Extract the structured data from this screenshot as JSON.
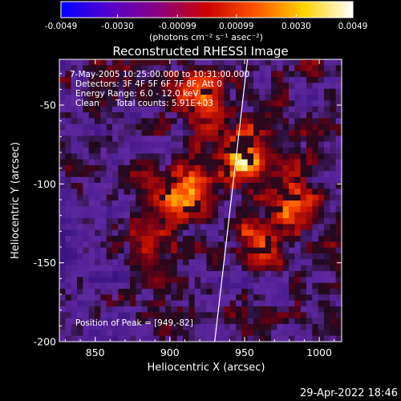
{
  "chart_data": {
    "type": "heatmap",
    "title": "Reconstructed RHESSI Image",
    "xlabel": "Heliocentric X (arcsec)",
    "ylabel": "Heliocentric Y (arcsec)",
    "xlim": [
      826,
      1015
    ],
    "ylim": [
      -200,
      -21
    ],
    "x_ticks": [
      "850",
      "900",
      "950",
      "1000"
    ],
    "y_ticks": [
      "-50",
      "-100",
      "-150",
      "-200"
    ],
    "colorbar": {
      "unit_label": "(photons cm⁻² s⁻¹ asec⁻²)",
      "range": [
        -0.0049,
        0.0049
      ],
      "ticks": [
        "-0.0049",
        "-0.0030",
        "-0.00099",
        "0.00099",
        "0.0030",
        "0.0049"
      ],
      "colors": [
        "#0000ff",
        "#5500cc",
        "#8a0080",
        "#cc0000",
        "#ff5500",
        "#ffd400",
        "#ffffff"
      ]
    },
    "annotations": {
      "time_range": "7-May-2005 10:25:00.000 to 10:31:00.000",
      "detectors": "Detectors: 3F 4F 5F 6F 7F 8F, Att 0",
      "energy_range": "Energy Range: 6.0 - 12.0 keV",
      "clean_label": "Clean",
      "total_counts": "Total counts: 5.91E+03",
      "peak": "Position of Peak = [949,-82]"
    },
    "peak_position": [
      949,
      -82
    ],
    "hot_spots": [
      {
        "x": 949,
        "y": -82,
        "intensity": 1.0
      },
      {
        "x": 910,
        "y": -108,
        "intensity": 0.85
      },
      {
        "x": 983,
        "y": -112,
        "intensity": 0.7
      },
      {
        "x": 960,
        "y": -138,
        "intensity": 0.55
      },
      {
        "x": 920,
        "y": -45,
        "intensity": 0.6
      },
      {
        "x": 890,
        "y": -135,
        "intensity": 0.5
      }
    ],
    "limb_line": [
      [
        952,
        -21
      ],
      [
        930,
        -200
      ]
    ],
    "footer_date": "29-Apr-2022 18:46"
  }
}
